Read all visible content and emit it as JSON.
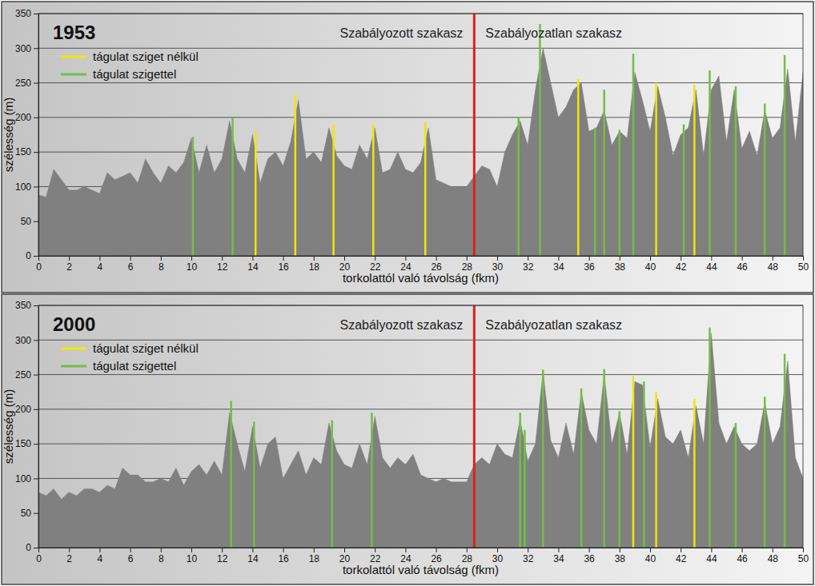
{
  "chart_data": [
    {
      "type": "area",
      "title": "1953",
      "x_label": "torkolattól való távolság (fkm)",
      "y_label": "szélesség (m)",
      "annotations": [
        "Szabályozott szakasz",
        "Szabályozatlan szakasz"
      ],
      "section_boundary": 28.5,
      "xlim": [
        0,
        50
      ],
      "xticks": [
        0,
        2,
        4,
        6,
        8,
        10,
        12,
        14,
        16,
        18,
        20,
        22,
        24,
        26,
        28,
        30,
        32,
        34,
        36,
        38,
        40,
        42,
        44,
        46,
        48,
        50
      ],
      "ylim": [
        0,
        350
      ],
      "yticks": [
        0,
        50,
        100,
        150,
        200,
        250,
        300,
        350
      ],
      "grid": true,
      "legend": "upper left",
      "series": [
        {
          "type": "area",
          "color": "#808080",
          "x": [
            0,
            0.5,
            1,
            1.5,
            2,
            2.5,
            3,
            3.5,
            4,
            4.5,
            5,
            5.5,
            6,
            6.5,
            7,
            7.5,
            8,
            8.5,
            9,
            9.5,
            10,
            10.5,
            11,
            11.5,
            12,
            12.5,
            13,
            13.5,
            14,
            14.5,
            15,
            15.5,
            16,
            16.5,
            17,
            17.5,
            18,
            18.5,
            19,
            19.5,
            20,
            20.5,
            21,
            21.5,
            22,
            22.5,
            23,
            23.5,
            24,
            24.5,
            25,
            25.5,
            26,
            26.5,
            27,
            27.5,
            28,
            28.5,
            29,
            29.5,
            30,
            30.5,
            31,
            31.5,
            32,
            32.5,
            33,
            33.5,
            34,
            34.5,
            35,
            35.5,
            36,
            36.5,
            37,
            37.5,
            38,
            38.5,
            39,
            39.5,
            40,
            40.5,
            41,
            41.5,
            42,
            42.5,
            43,
            43.5,
            44,
            44.5,
            45,
            45.5,
            46,
            46.5,
            47,
            47.5,
            48,
            48.5,
            49,
            49.5,
            50
          ],
          "values": [
            88,
            85,
            125,
            110,
            95,
            95,
            100,
            95,
            90,
            120,
            110,
            115,
            120,
            105,
            140,
            120,
            105,
            130,
            120,
            135,
            170,
            120,
            160,
            120,
            140,
            195,
            140,
            120,
            175,
            105,
            140,
            150,
            130,
            165,
            225,
            140,
            150,
            135,
            185,
            145,
            130,
            125,
            160,
            140,
            185,
            120,
            125,
            150,
            125,
            120,
            135,
            185,
            110,
            105,
            100,
            100,
            100,
            115,
            130,
            125,
            100,
            150,
            175,
            195,
            160,
            240,
            300,
            250,
            200,
            215,
            240,
            250,
            180,
            185,
            210,
            160,
            180,
            170,
            265,
            225,
            180,
            245,
            200,
            145,
            175,
            185,
            240,
            145,
            240,
            260,
            165,
            240,
            155,
            180,
            145,
            210,
            170,
            185,
            270,
            165,
            265
          ]
        },
        {
          "name": "tágulat sziget nélkül",
          "type": "bar",
          "color": "#f2e600",
          "x": [
            14.2,
            16.8,
            19.3,
            21.9,
            25.3,
            35.3,
            40.4,
            42.9
          ],
          "values": [
            180,
            232,
            190,
            190,
            193,
            255,
            250,
            247
          ]
        },
        {
          "name": "tágulat szigettel",
          "type": "bar",
          "color": "#72bf44",
          "x": [
            10.1,
            12.7,
            31.4,
            32.8,
            36.4,
            37.0,
            38.0,
            38.9,
            42.2,
            43.9,
            45.6,
            47.5,
            48.8
          ],
          "values": [
            172,
            200,
            200,
            335,
            185,
            240,
            182,
            292,
            190,
            268,
            245,
            220,
            290
          ]
        }
      ]
    },
    {
      "type": "area",
      "title": "2000",
      "x_label": "torkolattól való távolság (fkm)",
      "y_label": "szélesség (m)",
      "annotations": [
        "Szabályozott szakasz",
        "Szabályozatlan szakasz"
      ],
      "section_boundary": 28.5,
      "xlim": [
        0,
        50
      ],
      "xticks": [
        0,
        2,
        4,
        6,
        8,
        10,
        12,
        14,
        16,
        18,
        20,
        22,
        24,
        26,
        28,
        30,
        32,
        34,
        36,
        38,
        40,
        42,
        44,
        46,
        48,
        50
      ],
      "ylim": [
        0,
        350
      ],
      "yticks": [
        0,
        50,
        100,
        150,
        200,
        250,
        300,
        350
      ],
      "grid": true,
      "legend": "upper left",
      "series": [
        {
          "type": "area",
          "color": "#808080",
          "x": [
            0,
            0.5,
            1,
            1.5,
            2,
            2.5,
            3,
            3.5,
            4,
            4.5,
            5,
            5.5,
            6,
            6.5,
            7,
            7.5,
            8,
            8.5,
            9,
            9.5,
            10,
            10.5,
            11,
            11.5,
            12,
            12.5,
            13,
            13.5,
            14,
            14.5,
            15,
            15.5,
            16,
            16.5,
            17,
            17.5,
            18,
            18.5,
            19,
            19.5,
            20,
            20.5,
            21,
            21.5,
            22,
            22.5,
            23,
            23.5,
            24,
            24.5,
            25,
            25.5,
            26,
            26.5,
            27,
            27.5,
            28,
            28.5,
            29,
            29.5,
            30,
            30.5,
            31,
            31.5,
            32,
            32.5,
            33,
            33.5,
            34,
            34.5,
            35,
            35.5,
            36,
            36.5,
            37,
            37.5,
            38,
            38.5,
            39,
            39.5,
            40,
            40.5,
            41,
            41.5,
            42,
            42.5,
            43,
            43.5,
            44,
            44.5,
            45,
            45.5,
            46,
            46.5,
            47,
            47.5,
            48,
            48.5,
            49,
            49.5,
            50
          ],
          "values": [
            80,
            75,
            85,
            70,
            80,
            75,
            85,
            85,
            80,
            90,
            85,
            115,
            105,
            105,
            95,
            95,
            100,
            95,
            115,
            90,
            110,
            120,
            105,
            125,
            105,
            195,
            150,
            110,
            175,
            115,
            150,
            160,
            100,
            120,
            140,
            105,
            130,
            120,
            180,
            140,
            120,
            115,
            150,
            120,
            190,
            130,
            115,
            130,
            120,
            135,
            105,
            100,
            95,
            100,
            95,
            95,
            95,
            120,
            130,
            120,
            150,
            135,
            130,
            185,
            125,
            150,
            255,
            155,
            130,
            180,
            135,
            225,
            170,
            150,
            250,
            150,
            195,
            135,
            240,
            235,
            145,
            215,
            160,
            150,
            170,
            130,
            205,
            150,
            310,
            180,
            150,
            175,
            150,
            140,
            150,
            210,
            150,
            175,
            270,
            130,
            100
          ]
        },
        {
          "name": "tágulat sziget nélkül",
          "type": "bar",
          "color": "#f2e600",
          "x": [
            38.9,
            40.4,
            42.9
          ],
          "values": [
            248,
            225,
            215
          ]
        },
        {
          "name": "tágulat szigettel",
          "type": "bar",
          "color": "#72bf44",
          "x": [
            12.6,
            14.1,
            19.2,
            21.8,
            31.5,
            31.8,
            33.0,
            35.5,
            37.0,
            38.0,
            39.6,
            43.9,
            45.6,
            47.5,
            48.8
          ],
          "values": [
            212,
            182,
            184,
            195,
            195,
            170,
            257,
            230,
            258,
            197,
            240,
            318,
            180,
            218,
            280
          ]
        }
      ]
    }
  ]
}
